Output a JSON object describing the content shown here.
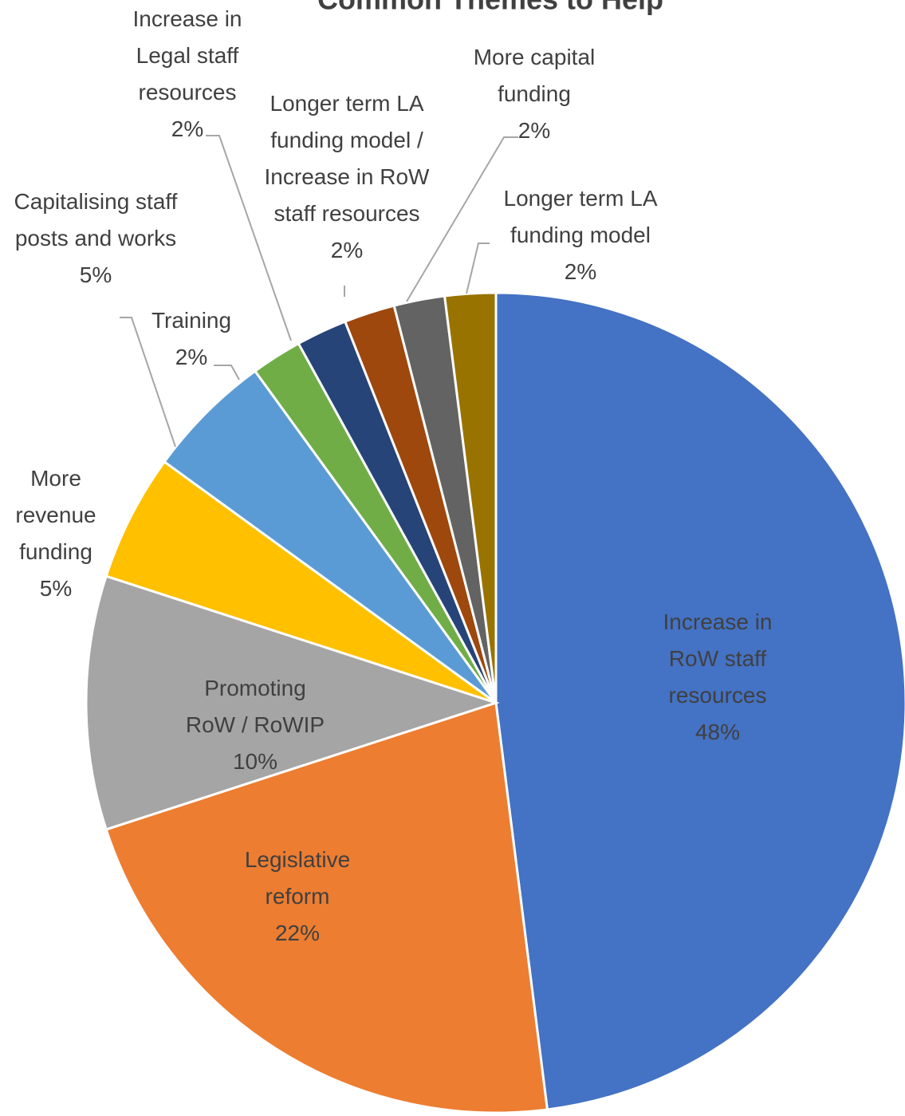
{
  "chart_data": {
    "type": "pie",
    "title": "Common Themes to Help",
    "categories": [
      "Increase in RoW staff resources",
      "Legislative reform",
      "Promoting RoW / RoWIP",
      "More revenue funding",
      "Capitalising staff posts and works",
      "Training",
      "Increase in Legal staff resources",
      "Longer term LA funding model / Increase in RoW staff resources",
      "More capital funding",
      "Longer term LA funding model"
    ],
    "values": [
      48,
      22,
      10,
      5,
      5,
      2,
      2,
      2,
      2,
      2
    ],
    "value_labels": [
      "48%",
      "22%",
      "10%",
      "5%",
      "5%",
      "2%",
      "2%",
      "2%",
      "2%",
      "2%"
    ],
    "colors": [
      "#4472c4",
      "#ed7d31",
      "#a5a5a5",
      "#ffc000",
      "#5b9bd5",
      "#70ad47",
      "#264478",
      "#9e480e",
      "#636363",
      "#997300"
    ]
  }
}
